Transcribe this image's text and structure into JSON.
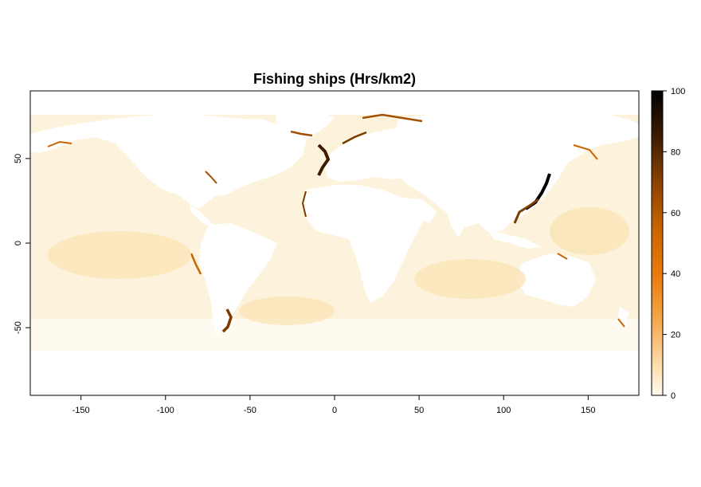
{
  "title": "Fishing ships (Hrs/km2)",
  "map": {
    "x_range": [
      -180,
      180
    ],
    "y_range": [
      -90,
      90
    ],
    "x_ticks": [
      -150,
      -100,
      -50,
      0,
      50,
      100,
      150
    ],
    "y_ticks": [
      -50,
      0,
      50
    ],
    "x_tick_labels": [
      "-150",
      "-100",
      "-50",
      "0",
      "50",
      "100",
      "150"
    ],
    "y_tick_labels": [
      "-50",
      "0",
      "50"
    ]
  },
  "legend": {
    "min": 0,
    "max": 100,
    "ticks": [
      0,
      20,
      40,
      60,
      80,
      100
    ],
    "tick_labels": [
      "0",
      "20",
      "40",
      "60",
      "80",
      "100"
    ],
    "colors": [
      "#fffaf0",
      "#ffe3b8",
      "#f5a64a",
      "#e87a0a",
      "#c86400",
      "#8a4200",
      "#3d1c00",
      "#000000"
    ]
  },
  "colors": {
    "ocean_low": "#fdf1d6",
    "ocean_mid": "#fbe2b0",
    "land": "#ffffff",
    "hotspot_mid": "#e0700a",
    "hotspot_high": "#7a3b00",
    "hotspot_max": "#000000"
  }
}
